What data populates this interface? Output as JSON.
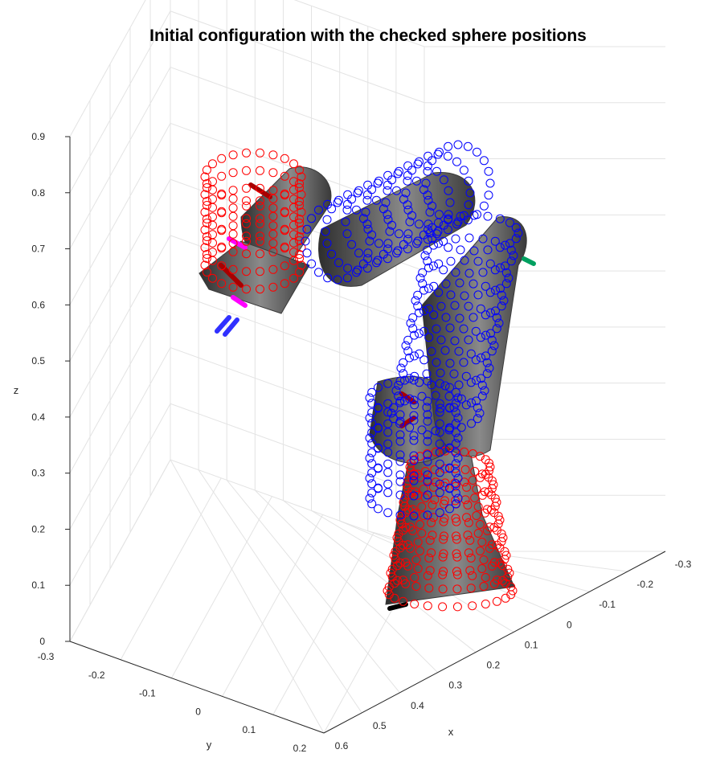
{
  "chart_data": {
    "type": "scatter",
    "title": "Initial configuration with the checked sphere positions",
    "xlabel": "x",
    "ylabel": "y",
    "zlabel": "z",
    "x_ticks": [
      "0.6",
      "0.5",
      "0.4",
      "0.3",
      "0.2",
      "0.1",
      "0",
      "-0.1",
      "-0.2",
      "-0.3"
    ],
    "y_ticks": [
      "-0.3",
      "-0.2",
      "-0.1",
      "0",
      "0.1",
      "0.2"
    ],
    "z_ticks": [
      "0",
      "0.1",
      "0.2",
      "0.3",
      "0.4",
      "0.5",
      "0.6",
      "0.7",
      "0.8",
      "0.9"
    ],
    "xlim": [
      -0.3,
      0.6
    ],
    "ylim": [
      -0.3,
      0.3
    ],
    "zlim": [
      0,
      0.9
    ],
    "grid": true,
    "view": "3d",
    "colors": {
      "self_collision_spheres": "#ff0000",
      "other_spheres": "#0000ff",
      "robot_body": "#5a5a5a",
      "frame_marker_red": "#a80000",
      "frame_marker_blue": "#3030ff",
      "frame_marker_magenta": "#ff00ff",
      "frame_marker_green": "#00a060"
    },
    "series": [
      {
        "color": "red",
        "marker": "circle",
        "segments": [
          {
            "part": "base",
            "x": [
              0.28,
              0.42
            ],
            "y": [
              0.05,
              0.2
            ],
            "z": [
              0.0,
              0.22
            ]
          },
          {
            "part": "gripper",
            "x": [
              0.18,
              0.32
            ],
            "y": [
              0.12,
              0.26
            ],
            "z": [
              0.62,
              0.86
            ]
          }
        ]
      },
      {
        "color": "blue",
        "marker": "circle",
        "segments": [
          {
            "part": "shoulder",
            "x": [
              0.15,
              0.3
            ],
            "y": [
              -0.08,
              0.05
            ],
            "z": [
              0.22,
              0.5
            ]
          },
          {
            "part": "upper-arm",
            "x": [
              0.05,
              0.25
            ],
            "y": [
              -0.15,
              0.0
            ],
            "z": [
              0.45,
              0.72
            ]
          },
          {
            "part": "forearm",
            "x": [
              0.0,
              0.2
            ],
            "y": [
              0.0,
              0.15
            ],
            "z": [
              0.7,
              0.82
            ]
          }
        ]
      }
    ]
  }
}
